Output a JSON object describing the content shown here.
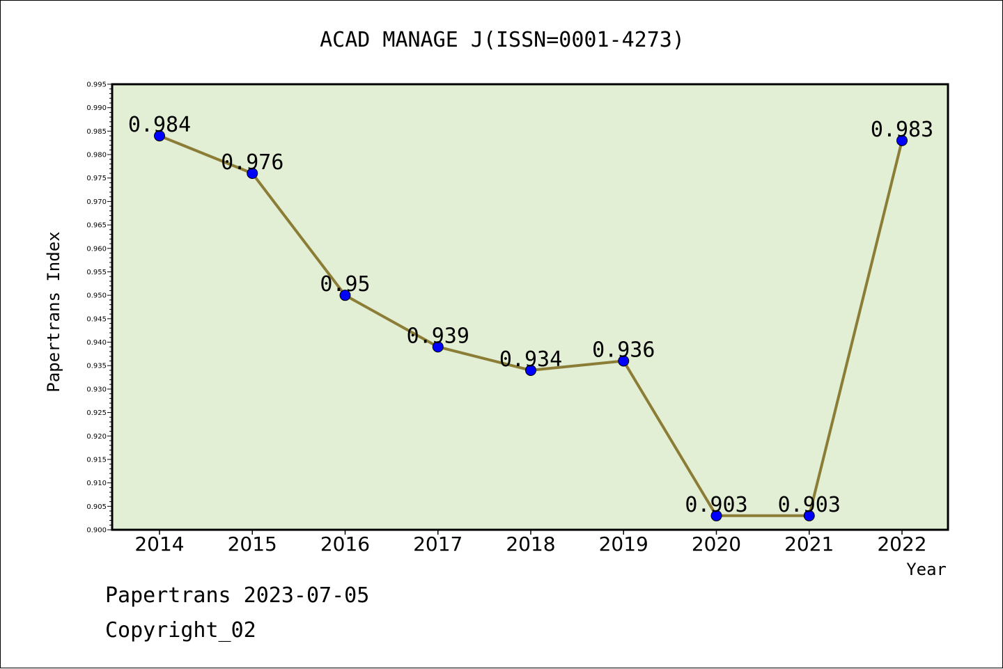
{
  "chart_data": {
    "type": "line",
    "title": "ACAD MANAGE J(ISSN=0001-4273)",
    "xlabel": "Year",
    "ylabel": "Papertrans Index",
    "categories": [
      "2014",
      "2015",
      "2016",
      "2017",
      "2018",
      "2019",
      "2020",
      "2021",
      "2022"
    ],
    "values": [
      0.984,
      0.976,
      0.95,
      0.939,
      0.934,
      0.936,
      0.903,
      0.903,
      0.983
    ],
    "data_labels": [
      "0.984",
      "0.976",
      "0.95",
      "0.939",
      "0.934",
      "0.936",
      "0.903",
      "0.903",
      "0.983"
    ],
    "ylim": [
      0.9,
      0.995
    ],
    "yticks": [
      "0.900",
      "0.905",
      "0.910",
      "0.915",
      "0.920",
      "0.925",
      "0.930",
      "0.935",
      "0.940",
      "0.945",
      "0.950",
      "0.955",
      "0.960",
      "0.965",
      "0.970",
      "0.975",
      "0.980",
      "0.985",
      "0.990",
      "0.995"
    ],
    "grid": false,
    "legend": "none"
  },
  "footer": {
    "line1": "Papertrans 2023-07-05",
    "line2": "Copyright_02"
  },
  "colors": {
    "plot_background": "#e2efd5",
    "line": "#8c7d36",
    "marker": "#0000ff",
    "axis": "#000000"
  }
}
